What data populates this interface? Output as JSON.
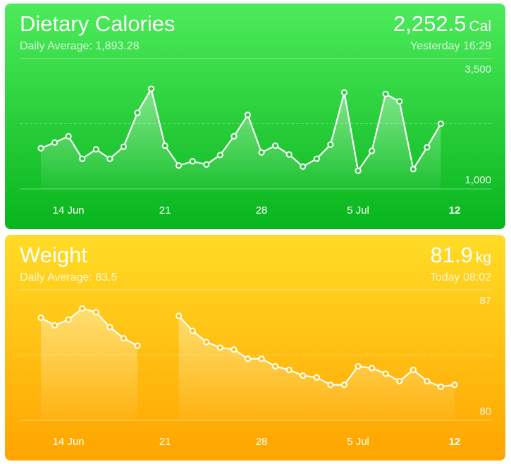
{
  "chart_data": [
    {
      "type": "line",
      "title": "Dietary Calories",
      "subtitle": "Daily Average: 1,893.28",
      "latest": "2,252.5",
      "unit": "Cal",
      "timestamp": "Yesterday 16:29",
      "categories": [
        null,
        null,
        "14 Jun",
        null,
        null,
        null,
        null,
        null,
        null,
        "21",
        null,
        null,
        null,
        null,
        null,
        null,
        "28",
        null,
        null,
        null,
        null,
        null,
        null,
        "5 Jul",
        null,
        null,
        null,
        null,
        null,
        null,
        "12"
      ],
      "values": [
        1780,
        1890,
        2010,
        1580,
        1760,
        1580,
        1810,
        2460,
        2920,
        1830,
        1450,
        1530,
        1470,
        1650,
        2010,
        2420,
        1700,
        1830,
        1660,
        1430,
        1580,
        1850,
        2850,
        1350,
        1730,
        2820,
        2680,
        1380,
        1800,
        2250,
        null
      ],
      "color": "#ffffff",
      "area": true,
      "ylim": [
        1000,
        3500
      ],
      "yticks": [
        {
          "value": 1000,
          "label": "1,000"
        },
        {
          "value": 3500,
          "label": "3,500"
        }
      ]
    },
    {
      "type": "line",
      "title": "Weight",
      "subtitle": "Daily Average: 83.5",
      "latest": "81.9",
      "unit": "kg",
      "timestamp": "Today 08:02",
      "categories": [
        null,
        null,
        "14 Jun",
        null,
        null,
        null,
        null,
        null,
        null,
        "21",
        null,
        null,
        null,
        null,
        null,
        null,
        "28",
        null,
        null,
        null,
        null,
        null,
        null,
        "5 Jul",
        null,
        null,
        null,
        null,
        null,
        null,
        "12"
      ],
      "values": [
        85.5,
        85.1,
        85.4,
        86.0,
        85.8,
        85.0,
        84.4,
        84.0,
        null,
        null,
        85.6,
        84.8,
        84.2,
        83.9,
        83.8,
        83.3,
        83.3,
        82.9,
        82.7,
        82.4,
        82.3,
        81.9,
        81.9,
        82.9,
        82.8,
        82.5,
        82.1,
        82.7,
        82.1,
        81.8,
        81.9
      ],
      "color": "#ffffff",
      "area": true,
      "ylim": [
        80,
        87
      ],
      "yticks": [
        80,
        87
      ]
    }
  ]
}
